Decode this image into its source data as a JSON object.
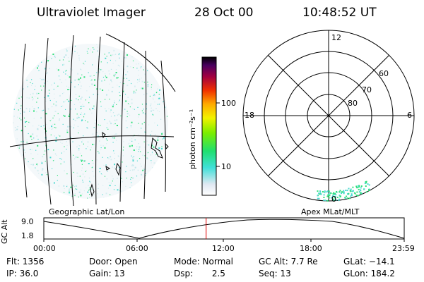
{
  "header": {
    "instrument": "Ultraviolet Imager",
    "date": "28 Oct 00",
    "time": "10:48:52 UT"
  },
  "colorbar": {
    "unit_label": "photon cm⁻²s⁻¹",
    "ticks": [
      "100",
      "10"
    ]
  },
  "polar_plot": {
    "mlt_labels": [
      "12",
      "18",
      "6",
      "0"
    ],
    "lat_labels": [
      "60",
      "70",
      "80"
    ]
  },
  "coords": {
    "left_label": "Geographic Lat/Lon",
    "right_label": "Apex MLat/MLT"
  },
  "orbit_plot": {
    "ylabel": "GC Alt",
    "yticks": [
      "9.0",
      "1.8"
    ],
    "xticks": [
      "00:00",
      "06:00",
      "12:00",
      "18:00",
      "23:59"
    ],
    "current_time_hours": 10.81
  },
  "footer": {
    "flt": "Flt: 1356",
    "ip": "IP: 36.0",
    "door": "Door: Open",
    "gain": "Gain: 13",
    "mode": "Mode: Normal",
    "dsp": "Dsp:       2.5",
    "gc_alt": "GC Alt: 7.7 Re",
    "seq": "Seq: 13",
    "glat": "GLat: −14.1",
    "glon": "GLon: 184.2"
  },
  "colors": {
    "speckle_green": "#2ee07a",
    "speckle_cyan": "#4dd9d0",
    "marker_red": "#e00000"
  }
}
